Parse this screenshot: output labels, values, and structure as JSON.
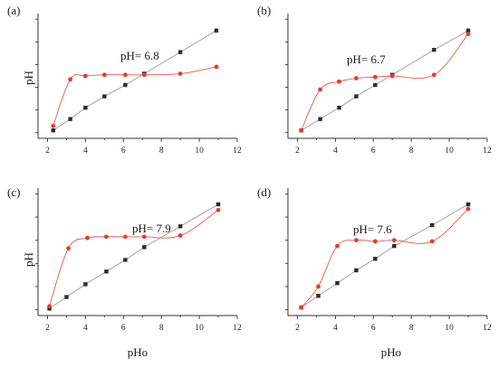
{
  "colors": {
    "ph_series": "#e63b2e",
    "pho_series": "#2a2a2a",
    "ref_line": "#9a9a9a",
    "axis": "#333333"
  },
  "chart_data": [
    {
      "type": "line",
      "panel": "(a)",
      "annotation": "pH= 6.8",
      "xlabel": "",
      "ylabel": "pH",
      "xlim": [
        1.5,
        12
      ],
      "xticks": [
        2,
        4,
        6,
        8,
        10,
        12
      ],
      "ylim": [
        1.5,
        12.5
      ],
      "show_y_tick_labels": false,
      "grid": false,
      "series": [
        {
          "x": [
            2.3,
            3.2,
            4.0,
            5.0,
            6.1,
            7.1,
            9.0,
            10.9
          ],
          "y": [
            2.2,
            3.2,
            4.2,
            5.2,
            6.2,
            7.2,
            9.1,
            11.0
          ]
        },
        {
          "x": [
            2.3,
            3.2,
            4.0,
            5.0,
            6.1,
            7.1,
            9.0,
            10.9
          ],
          "y": [
            2.6,
            6.7,
            7.0,
            7.1,
            7.1,
            7.1,
            7.2,
            7.8
          ]
        }
      ]
    },
    {
      "type": "line",
      "panel": "(b)",
      "annotation": "pH= 6.7",
      "xlabel": "",
      "ylabel": "",
      "xlim": [
        1.5,
        12
      ],
      "xticks": [
        2,
        4,
        6,
        8,
        10,
        12
      ],
      "ylim": [
        1.5,
        12.5
      ],
      "show_y_tick_labels": false,
      "grid": false,
      "series": [
        {
          "x": [
            2.2,
            3.2,
            4.2,
            5.1,
            6.1,
            7.0,
            9.2,
            11.0
          ],
          "y": [
            2.2,
            3.2,
            4.2,
            5.2,
            6.2,
            7.1,
            9.3,
            11.0
          ]
        },
        {
          "x": [
            2.2,
            3.2,
            4.2,
            5.1,
            6.1,
            7.0,
            9.2,
            11.0
          ],
          "y": [
            2.2,
            5.8,
            6.5,
            6.8,
            6.9,
            7.0,
            7.1,
            10.7
          ]
        }
      ]
    },
    {
      "type": "line",
      "panel": "(c)",
      "annotation": "pH= 7.9",
      "xlabel": "pHo",
      "ylabel": "pH",
      "xlim": [
        1.5,
        12
      ],
      "xticks": [
        2,
        4,
        6,
        8,
        10,
        12
      ],
      "ylim": [
        1.5,
        12.5
      ],
      "show_y_tick_labels": false,
      "grid": false,
      "series": [
        {
          "x": [
            2.1,
            3.0,
            4.0,
            5.1,
            6.1,
            7.1,
            9.0,
            11.0
          ],
          "y": [
            2.1,
            3.1,
            4.2,
            5.3,
            6.3,
            7.4,
            9.2,
            11.1
          ]
        },
        {
          "x": [
            2.1,
            3.1,
            4.1,
            5.1,
            6.1,
            7.1,
            9.0,
            11.0
          ],
          "y": [
            2.3,
            7.3,
            8.2,
            8.3,
            8.3,
            8.3,
            8.4,
            10.6
          ]
        }
      ]
    },
    {
      "type": "line",
      "panel": "(d)",
      "annotation": "pH= 7.6",
      "xlabel": "pHo",
      "ylabel": "",
      "xlim": [
        1.5,
        12
      ],
      "xticks": [
        2,
        4,
        6,
        8,
        10,
        12
      ],
      "ylim": [
        1.5,
        12.5
      ],
      "show_y_tick_labels": false,
      "grid": false,
      "series": [
        {
          "x": [
            2.2,
            3.1,
            4.1,
            5.1,
            6.1,
            7.1,
            9.1,
            11.0
          ],
          "y": [
            2.2,
            3.2,
            4.3,
            5.4,
            6.4,
            7.5,
            9.3,
            11.1
          ]
        },
        {
          "x": [
            2.2,
            3.1,
            4.1,
            5.1,
            6.1,
            7.1,
            9.1,
            11.0
          ],
          "y": [
            2.2,
            4.0,
            7.5,
            8.0,
            7.9,
            8.0,
            7.9,
            10.7
          ]
        }
      ]
    }
  ]
}
